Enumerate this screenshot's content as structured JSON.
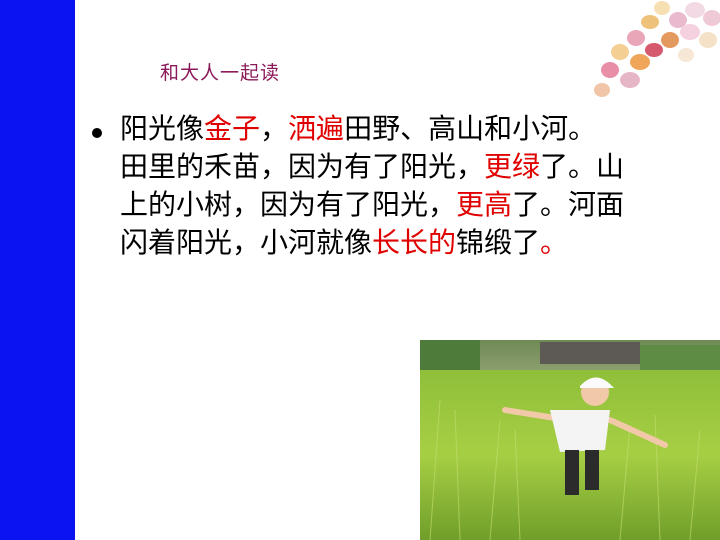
{
  "subtitle": "和大人一起读",
  "paragraph": {
    "lines": [
      [
        {
          "text": "阳光像",
          "red": false
        },
        {
          "text": "金子",
          "red": true
        },
        {
          "text": "，",
          "red": false
        },
        {
          "text": "洒遍",
          "red": true
        },
        {
          "text": "田野、高山和小河。",
          "red": false
        }
      ],
      [
        {
          "text": "田里的禾苗，因为有了阳光，",
          "red": false
        },
        {
          "text": "更绿",
          "red": true
        },
        {
          "text": "了。山",
          "red": false
        }
      ],
      [
        {
          "text": "上的小树，因为有了阳光，",
          "red": false
        },
        {
          "text": "更高",
          "red": true
        },
        {
          "text": "了。河面",
          "red": false
        }
      ],
      [
        {
          "text": "闪着阳光，小河就像",
          "red": false
        },
        {
          "text": "长长的",
          "red": true
        },
        {
          "text": "锦缎了",
          "red": false
        },
        {
          "text": "。",
          "red": true
        }
      ]
    ]
  },
  "colors": {
    "left_bar": "#0a14f0",
    "emphasis": "#e00000",
    "subtitle": "#8a1a5a"
  },
  "images": {
    "top_right": "candy-decoration",
    "bottom_right": "child-in-rice-field-photo"
  }
}
